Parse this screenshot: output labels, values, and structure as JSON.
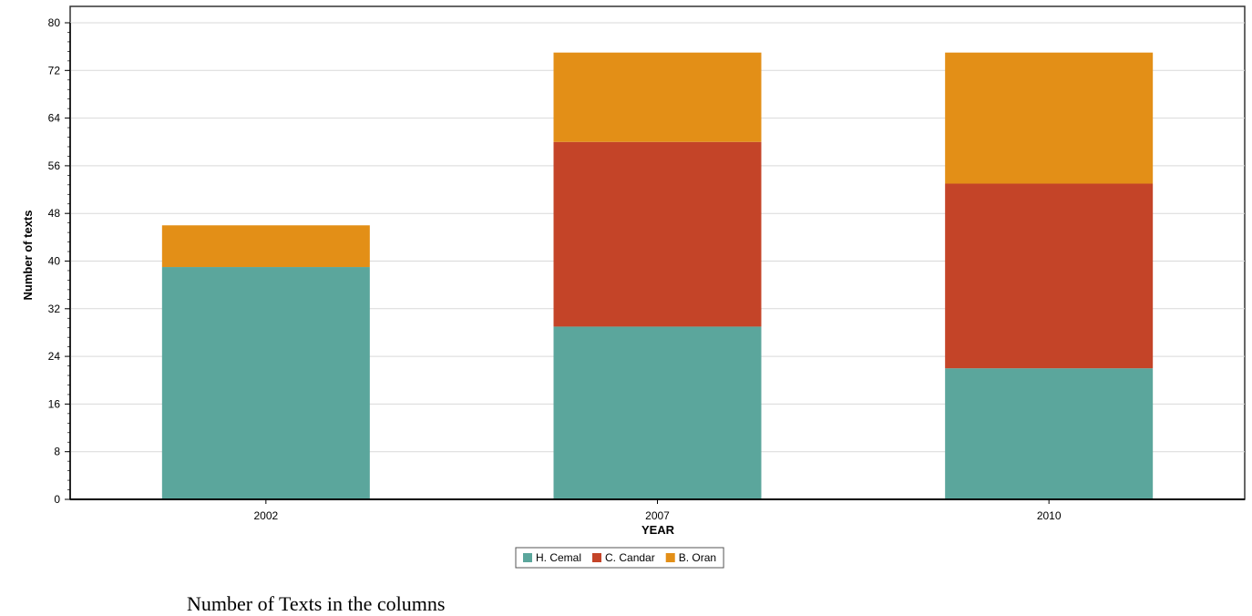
{
  "caption": "Number of Texts in the columns",
  "chart_data": {
    "type": "bar",
    "stacked": true,
    "categories": [
      "2002",
      "2007",
      "2010"
    ],
    "series": [
      {
        "name": "H. Cemal",
        "values": [
          39,
          29,
          22
        ],
        "color": "#5ba69c"
      },
      {
        "name": "C. Candar",
        "values": [
          0,
          31,
          31
        ],
        "color": "#c44428"
      },
      {
        "name": "B. Oran",
        "values": [
          7,
          15,
          22
        ],
        "color": "#e38f17"
      }
    ],
    "xlabel": "YEAR",
    "ylabel": "Number of texts",
    "ylim": [
      0,
      80
    ],
    "yticks": [
      0,
      8,
      16,
      24,
      32,
      40,
      48,
      56,
      64,
      72,
      80
    ],
    "grid": true,
    "legend": "bottom-center"
  }
}
